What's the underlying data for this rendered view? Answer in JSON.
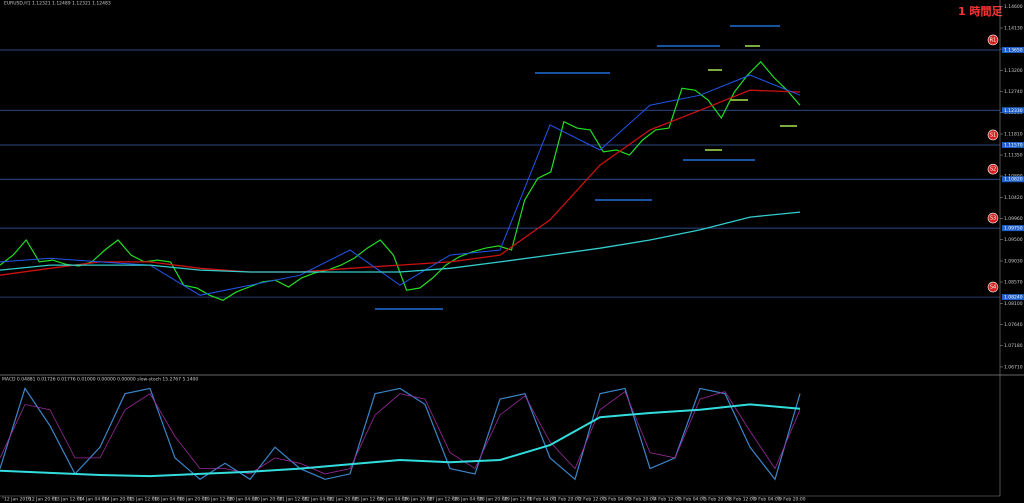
{
  "window": {
    "title": "EURUSD,H1 1.12321 1.12489 1.12321 1.12483",
    "timeframe_badge": "1 時間足"
  },
  "price_axis": {
    "ylim": [
      1.066,
      1.147
    ],
    "ticks": [
      {
        "value": 1.146,
        "label": "1.14600"
      },
      {
        "value": 1.1413,
        "label": "1.14130"
      },
      {
        "value": 1.1367,
        "label": "1.13670"
      },
      {
        "value": 1.132,
        "label": "1.13200"
      },
      {
        "value": 1.1274,
        "label": "1.12740"
      },
      {
        "value": 1.1228,
        "label": "1.12280"
      },
      {
        "value": 1.1181,
        "label": "1.11810"
      },
      {
        "value": 1.1135,
        "label": "1.11350"
      },
      {
        "value": 1.1089,
        "label": "1.10890"
      },
      {
        "value": 1.1042,
        "label": "1.10420"
      },
      {
        "value": 1.0996,
        "label": "1.09960"
      },
      {
        "value": 1.095,
        "label": "1.09500"
      },
      {
        "value": 1.0903,
        "label": "1.09030"
      },
      {
        "value": 1.0857,
        "label": "1.08570"
      },
      {
        "value": 1.081,
        "label": "1.08100"
      },
      {
        "value": 1.0764,
        "label": "1.07640"
      },
      {
        "value": 1.0718,
        "label": "1.07180"
      },
      {
        "value": 1.0671,
        "label": "1.06710"
      }
    ]
  },
  "levels": [
    {
      "value": 1.1365,
      "label": "1.13650",
      "badge": "R1"
    },
    {
      "value": 1.1233,
      "label": "1.12330"
    },
    {
      "value": 1.1157,
      "label": "1.11570",
      "badge": "S1"
    },
    {
      "value": 1.1082,
      "label": "1.10820",
      "badge": "S2"
    },
    {
      "value": 1.0975,
      "label": "1.09750",
      "badge": "S3"
    },
    {
      "value": 1.0824,
      "label": "1.08240",
      "badge": "S4"
    }
  ],
  "series": [
    {
      "color": "#22dd22",
      "width": 1.2,
      "values": [
        1.0894,
        1.0916,
        1.0949,
        1.0901,
        1.0905,
        1.0896,
        1.0892,
        1.0901,
        1.0927,
        1.0949,
        1.0916,
        1.0901,
        1.0905,
        1.0901,
        1.085,
        1.0844,
        1.0828,
        1.0817,
        1.0835,
        1.0846,
        1.0857,
        1.0861,
        1.0846,
        1.0866,
        1.0877,
        1.0883,
        1.0894,
        1.0909,
        1.0931,
        1.0949,
        1.0916,
        1.0839,
        1.0844,
        1.0866,
        1.0894,
        1.0912,
        1.0923,
        1.0931,
        1.0936,
        1.0927,
        1.1036,
        1.1084,
        1.1098,
        1.1208,
        1.1194,
        1.119,
        1.1142,
        1.1146,
        1.1135,
        1.1168,
        1.119,
        1.1194,
        1.1281,
        1.1277,
        1.1255,
        1.1216,
        1.1273,
        1.131,
        1.1339,
        1.1305,
        1.1277,
        1.1244
      ]
    },
    {
      "color": "#cc1111",
      "width": 1.3,
      "values": [
        1.0872,
        1.0887,
        1.0901,
        1.0901,
        1.0887,
        1.0879,
        1.0879,
        1.0887,
        1.0894,
        1.0901,
        1.0916,
        1.0993,
        1.1113,
        1.119,
        1.1233,
        1.1277,
        1.1273
      ]
    },
    {
      "color": "#2255ee",
      "width": 1,
      "values": [
        1.0901,
        1.0909,
        1.0901,
        1.0894,
        1.0828,
        1.085,
        1.0872,
        1.0927,
        1.085,
        1.0916,
        1.0927,
        1.1201,
        1.1146,
        1.1244,
        1.1266,
        1.131,
        1.1266
      ]
    },
    {
      "color": "#33cccc",
      "width": 1.3,
      "values": [
        1.0883,
        1.0894,
        1.0894,
        1.0894,
        1.0883,
        1.0879,
        1.0879,
        1.0879,
        1.0879,
        1.0887,
        1.0901,
        1.0916,
        1.0931,
        1.0949,
        1.0971,
        1.0999,
        1.101
      ]
    }
  ],
  "indicator": {
    "header": "MACD 0.04881 0.01726 0.01776 0.01000 0.00000 0.00000 slow-stoch 15.2767 5.1400",
    "ylim": [
      0,
      100
    ],
    "series": [
      {
        "color": "#3a86c8",
        "width": 1.2,
        "values": [
          20,
          95,
          60,
          15,
          40,
          90,
          95,
          30,
          10,
          25,
          10,
          40,
          20,
          10,
          15,
          90,
          95,
          80,
          20,
          15,
          85,
          90,
          30,
          10,
          90,
          95,
          20,
          30,
          95,
          90,
          40,
          10,
          90
        ]
      },
      {
        "color": "#9a2a9a",
        "width": 0.8,
        "values": [
          30,
          80,
          75,
          30,
          30,
          75,
          90,
          50,
          20,
          20,
          15,
          30,
          25,
          15,
          20,
          70,
          90,
          85,
          35,
          20,
          70,
          88,
          45,
          20,
          75,
          92,
          35,
          30,
          85,
          92,
          55,
          20,
          75
        ]
      },
      {
        "color": "#33dddd",
        "width": 2,
        "values": [
          18,
          16,
          14,
          13,
          15,
          17,
          20,
          24,
          28,
          26,
          28,
          42,
          68,
          72,
          75,
          80,
          76
        ]
      }
    ]
  },
  "time_axis": {
    "labels": [
      "12 Jan 2016",
      "12 Jan 20:00",
      "13 Jan 12:00",
      "14 Jan 04:00",
      "14 Jan 20:00",
      "15 Jan 12:00",
      "18 Jan 04:00",
      "18 Jan 20:00",
      "19 Jan 12:00",
      "20 Jan 04:00",
      "20 Jan 20:00",
      "21 Jan 12:00",
      "22 Jan 04:00",
      "22 Jan 20:00",
      "25 Jan 12:00",
      "26 Jan 04:00",
      "26 Jan 20:00",
      "27 Jan 12:00",
      "28 Jan 04:00",
      "28 Jan 20:00",
      "29 Jan 12:00",
      "1 Feb 04:00",
      "1 Feb 20:00",
      "2 Feb 12:00",
      "3 Feb 04:00",
      "3 Feb 20:00",
      "4 Feb 12:00",
      "5 Feb 04:00",
      "5 Feb 20:00",
      "8 Feb 12:00",
      "9 Feb 04:00",
      "9 Feb 20:00"
    ]
  }
}
